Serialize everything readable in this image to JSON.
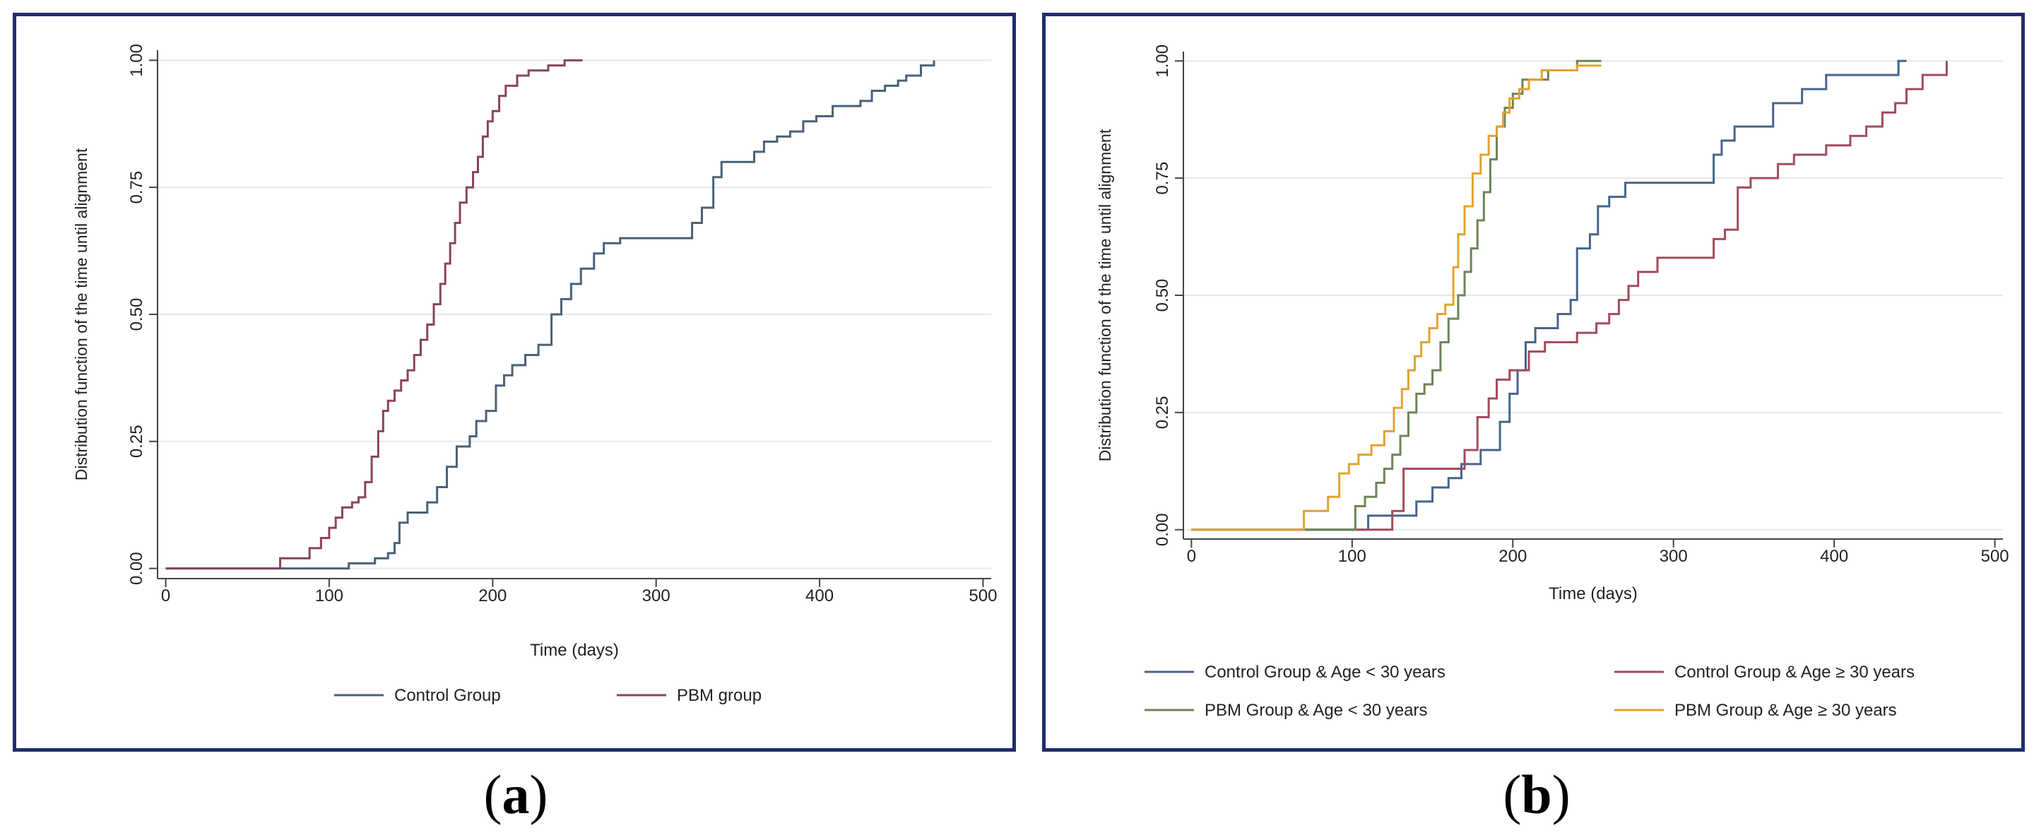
{
  "captions": {
    "a_open": "(",
    "a_letter": "a",
    "a_close": ")",
    "b_open": "(",
    "b_letter": "b",
    "b_close": ")"
  },
  "chart_data": [
    {
      "type": "line",
      "ylabel": "Distribution function of the time until alignment",
      "xlabel": "Time (days)",
      "xlim": [
        -5,
        505
      ],
      "ylim": [
        -0.02,
        1.02
      ],
      "xticks": [
        0,
        100,
        200,
        300,
        400,
        500
      ],
      "xticklabels": [
        "0",
        "100",
        "200",
        "300",
        "400",
        "500"
      ],
      "yticks": [
        0,
        0.25,
        0.5,
        0.75,
        1.0
      ],
      "yticklabels": [
        "0.00",
        "0.25",
        "0.50",
        "0.75",
        "1.00"
      ],
      "grid": "horizontal",
      "legend_position": "bottom",
      "series": [
        {
          "name": "Control Group",
          "color": "#4a6178",
          "steps": [
            [
              0,
              0
            ],
            [
              112,
              0.01
            ],
            [
              128,
              0.02
            ],
            [
              136,
              0.03
            ],
            [
              140,
              0.05
            ],
            [
              143,
              0.09
            ],
            [
              148,
              0.11
            ],
            [
              160,
              0.13
            ],
            [
              166,
              0.16
            ],
            [
              172,
              0.2
            ],
            [
              178,
              0.24
            ],
            [
              186,
              0.26
            ],
            [
              190,
              0.29
            ],
            [
              196,
              0.31
            ],
            [
              202,
              0.36
            ],
            [
              207,
              0.38
            ],
            [
              212,
              0.4
            ],
            [
              220,
              0.42
            ],
            [
              228,
              0.44
            ],
            [
              236,
              0.5
            ],
            [
              242,
              0.53
            ],
            [
              248,
              0.56
            ],
            [
              254,
              0.59
            ],
            [
              262,
              0.62
            ],
            [
              268,
              0.64
            ],
            [
              278,
              0.65
            ],
            [
              322,
              0.68
            ],
            [
              328,
              0.71
            ],
            [
              335,
              0.77
            ],
            [
              340,
              0.8
            ],
            [
              360,
              0.82
            ],
            [
              366,
              0.84
            ],
            [
              374,
              0.85
            ],
            [
              382,
              0.86
            ],
            [
              390,
              0.88
            ],
            [
              398,
              0.89
            ],
            [
              408,
              0.91
            ],
            [
              425,
              0.92
            ],
            [
              432,
              0.94
            ],
            [
              440,
              0.95
            ],
            [
              448,
              0.96
            ],
            [
              453,
              0.97
            ],
            [
              462,
              0.99
            ],
            [
              470,
              1.0
            ]
          ],
          "end_x": 470
        },
        {
          "name": "PBM group",
          "color": "#8b4456",
          "steps": [
            [
              0,
              0
            ],
            [
              70,
              0.02
            ],
            [
              88,
              0.04
            ],
            [
              95,
              0.06
            ],
            [
              100,
              0.08
            ],
            [
              104,
              0.1
            ],
            [
              108,
              0.12
            ],
            [
              114,
              0.13
            ],
            [
              118,
              0.14
            ],
            [
              122,
              0.17
            ],
            [
              126,
              0.22
            ],
            [
              130,
              0.27
            ],
            [
              133,
              0.31
            ],
            [
              136,
              0.33
            ],
            [
              140,
              0.35
            ],
            [
              144,
              0.37
            ],
            [
              148,
              0.39
            ],
            [
              152,
              0.42
            ],
            [
              156,
              0.45
            ],
            [
              160,
              0.48
            ],
            [
              164,
              0.52
            ],
            [
              168,
              0.56
            ],
            [
              171,
              0.6
            ],
            [
              174,
              0.64
            ],
            [
              177,
              0.68
            ],
            [
              180,
              0.72
            ],
            [
              184,
              0.75
            ],
            [
              188,
              0.78
            ],
            [
              191,
              0.81
            ],
            [
              194,
              0.85
            ],
            [
              197,
              0.88
            ],
            [
              200,
              0.9
            ],
            [
              204,
              0.93
            ],
            [
              208,
              0.95
            ],
            [
              215,
              0.97
            ],
            [
              222,
              0.98
            ],
            [
              234,
              0.99
            ],
            [
              244,
              1.0
            ]
          ],
          "end_x": 255
        }
      ]
    },
    {
      "type": "line",
      "ylabel": "Distribution function of the time until alignment",
      "xlabel": "Time (days)",
      "xlim": [
        -5,
        505
      ],
      "ylim": [
        -0.02,
        1.02
      ],
      "xticks": [
        0,
        100,
        200,
        300,
        400,
        500
      ],
      "xticklabels": [
        "0",
        "100",
        "200",
        "300",
        "400",
        "500"
      ],
      "yticks": [
        0,
        0.25,
        0.5,
        0.75,
        1.0
      ],
      "yticklabels": [
        "0.00",
        "0.25",
        "0.50",
        "0.75",
        "1.00"
      ],
      "grid": "horizontal",
      "legend_position": "bottom",
      "series": [
        {
          "name": "Control Group & Age < 30 years",
          "color": "#45658a",
          "steps": [
            [
              0,
              0
            ],
            [
              110,
              0.03
            ],
            [
              140,
              0.06
            ],
            [
              150,
              0.09
            ],
            [
              160,
              0.11
            ],
            [
              168,
              0.14
            ],
            [
              180,
              0.17
            ],
            [
              192,
              0.23
            ],
            [
              198,
              0.29
            ],
            [
              203,
              0.34
            ],
            [
              208,
              0.4
            ],
            [
              214,
              0.43
            ],
            [
              228,
              0.46
            ],
            [
              236,
              0.49
            ],
            [
              240,
              0.6
            ],
            [
              248,
              0.63
            ],
            [
              253,
              0.69
            ],
            [
              260,
              0.71
            ],
            [
              270,
              0.74
            ],
            [
              325,
              0.8
            ],
            [
              330,
              0.83
            ],
            [
              338,
              0.86
            ],
            [
              362,
              0.91
            ],
            [
              380,
              0.94
            ],
            [
              395,
              0.97
            ],
            [
              440,
              1.0
            ]
          ],
          "end_x": 445
        },
        {
          "name": "Control Group & Age ≥ 30 years",
          "color": "#a34a5e",
          "steps": [
            [
              0,
              0
            ],
            [
              125,
              0.04
            ],
            [
              132,
              0.13
            ],
            [
              170,
              0.17
            ],
            [
              178,
              0.24
            ],
            [
              185,
              0.28
            ],
            [
              190,
              0.32
            ],
            [
              198,
              0.34
            ],
            [
              210,
              0.38
            ],
            [
              220,
              0.4
            ],
            [
              240,
              0.42
            ],
            [
              252,
              0.44
            ],
            [
              260,
              0.46
            ],
            [
              266,
              0.49
            ],
            [
              272,
              0.52
            ],
            [
              278,
              0.55
            ],
            [
              290,
              0.58
            ],
            [
              325,
              0.62
            ],
            [
              332,
              0.64
            ],
            [
              340,
              0.73
            ],
            [
              348,
              0.75
            ],
            [
              365,
              0.78
            ],
            [
              375,
              0.8
            ],
            [
              395,
              0.82
            ],
            [
              410,
              0.84
            ],
            [
              420,
              0.86
            ],
            [
              430,
              0.89
            ],
            [
              438,
              0.91
            ],
            [
              445,
              0.94
            ],
            [
              455,
              0.97
            ],
            [
              470,
              1.0
            ]
          ],
          "end_x": 470
        },
        {
          "name": "PBM Group & Age < 30 years",
          "color": "#6e8457",
          "steps": [
            [
              0,
              0
            ],
            [
              102,
              0.05
            ],
            [
              108,
              0.07
            ],
            [
              115,
              0.1
            ],
            [
              120,
              0.13
            ],
            [
              125,
              0.16
            ],
            [
              130,
              0.2
            ],
            [
              135,
              0.25
            ],
            [
              140,
              0.29
            ],
            [
              145,
              0.31
            ],
            [
              150,
              0.34
            ],
            [
              155,
              0.4
            ],
            [
              160,
              0.45
            ],
            [
              166,
              0.5
            ],
            [
              170,
              0.55
            ],
            [
              174,
              0.6
            ],
            [
              178,
              0.66
            ],
            [
              182,
              0.72
            ],
            [
              186,
              0.79
            ],
            [
              190,
              0.86
            ],
            [
              195,
              0.9
            ],
            [
              200,
              0.93
            ],
            [
              206,
              0.96
            ],
            [
              222,
              0.98
            ],
            [
              240,
              1.0
            ]
          ],
          "end_x": 255
        },
        {
          "name": "PBM Group & Age ≥ 30 years",
          "color": "#e1a232",
          "steps": [
            [
              0,
              0
            ],
            [
              70,
              0.04
            ],
            [
              85,
              0.07
            ],
            [
              92,
              0.12
            ],
            [
              98,
              0.14
            ],
            [
              104,
              0.16
            ],
            [
              112,
              0.18
            ],
            [
              120,
              0.21
            ],
            [
              126,
              0.26
            ],
            [
              131,
              0.3
            ],
            [
              135,
              0.34
            ],
            [
              139,
              0.37
            ],
            [
              143,
              0.4
            ],
            [
              148,
              0.43
            ],
            [
              153,
              0.46
            ],
            [
              158,
              0.48
            ],
            [
              163,
              0.56
            ],
            [
              166,
              0.63
            ],
            [
              170,
              0.69
            ],
            [
              175,
              0.76
            ],
            [
              180,
              0.8
            ],
            [
              185,
              0.84
            ],
            [
              190,
              0.86
            ],
            [
              194,
              0.89
            ],
            [
              198,
              0.92
            ],
            [
              204,
              0.94
            ],
            [
              210,
              0.96
            ],
            [
              218,
              0.98
            ],
            [
              240,
              0.99
            ]
          ],
          "end_x": 255
        }
      ]
    }
  ]
}
